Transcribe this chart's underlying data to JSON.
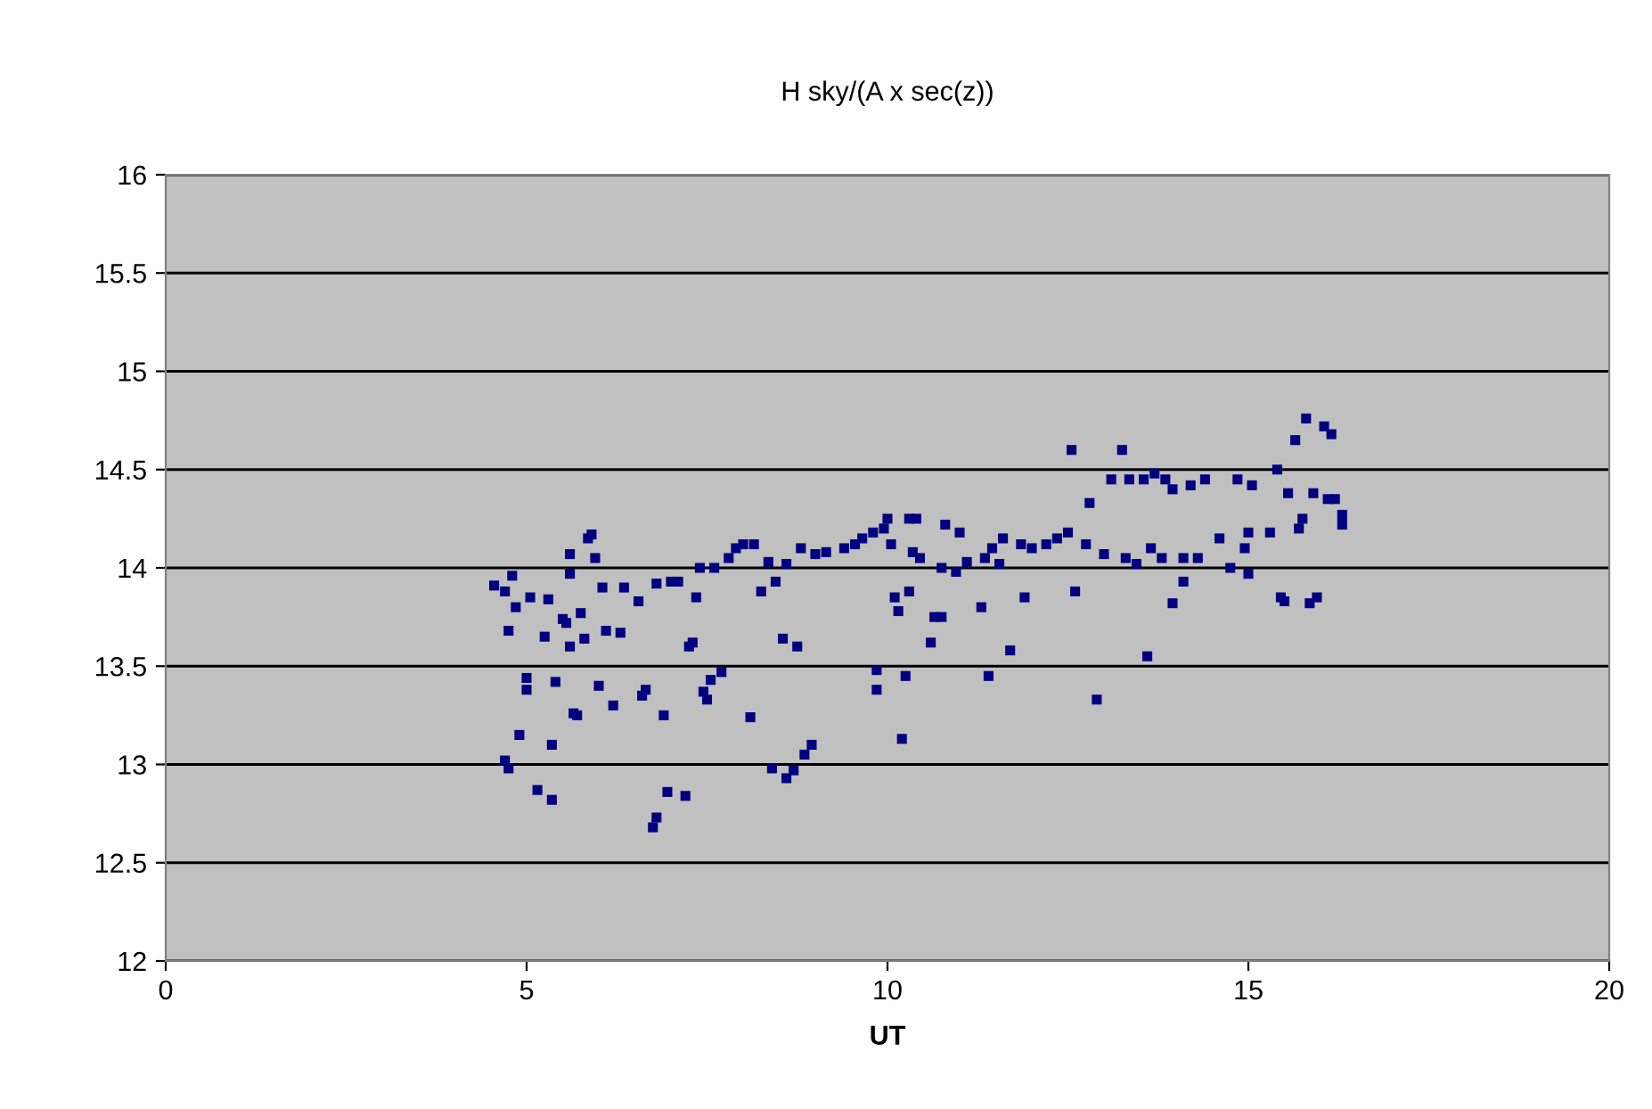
{
  "chart_data": {
    "type": "scatter",
    "title": "H sky/(A x sec(z))",
    "xlabel": "UT",
    "xlim": [
      0,
      20
    ],
    "xticks": [
      0,
      5,
      10,
      15,
      20
    ],
    "ylim": [
      12,
      16
    ],
    "yticks": [
      12,
      12.5,
      13,
      13.5,
      14,
      14.5,
      15,
      15.5,
      16
    ],
    "grid": "y",
    "marker": "square",
    "series": [
      {
        "color": "#000080",
        "x": [
          4.55,
          4.7,
          4.75,
          4.8,
          4.85,
          4.7,
          4.75,
          4.9,
          5.0,
          5.0,
          5.05,
          5.15,
          5.25,
          5.3,
          5.35,
          5.35,
          5.4,
          5.5,
          5.55,
          5.6,
          5.6,
          5.6,
          5.65,
          5.7,
          5.75,
          5.8,
          5.85,
          5.9,
          5.95,
          6.0,
          6.05,
          6.1,
          6.2,
          6.3,
          6.35,
          6.55,
          6.6,
          6.65,
          6.75,
          6.8,
          6.8,
          6.9,
          6.95,
          7.0,
          7.1,
          7.2,
          7.25,
          7.3,
          7.35,
          7.4,
          7.45,
          7.5,
          7.55,
          7.6,
          7.7,
          7.8,
          7.9,
          8.0,
          8.1,
          8.15,
          8.25,
          8.35,
          8.4,
          8.45,
          8.55,
          8.6,
          8.6,
          8.7,
          8.75,
          8.8,
          8.85,
          8.95,
          9.0,
          9.15,
          9.4,
          9.55,
          9.65,
          9.8,
          9.85,
          9.85,
          9.95,
          10.0,
          10.05,
          10.1,
          10.15,
          10.2,
          10.25,
          10.3,
          10.3,
          10.35,
          10.4,
          10.45,
          10.6,
          10.65,
          10.75,
          10.75,
          10.8,
          10.95,
          11.0,
          11.1,
          11.3,
          11.35,
          11.4,
          11.45,
          11.55,
          11.6,
          11.7,
          11.85,
          11.9,
          12.0,
          12.2,
          12.35,
          12.5,
          12.55,
          12.6,
          12.75,
          12.8,
          12.9,
          13.0,
          13.1,
          13.25,
          13.3,
          13.35,
          13.45,
          13.55,
          13.6,
          13.65,
          13.7,
          13.8,
          13.85,
          13.95,
          13.95,
          14.1,
          14.1,
          14.2,
          14.3,
          14.4,
          14.6,
          14.75,
          14.85,
          14.95,
          15.0,
          15.0,
          15.05,
          15.3,
          15.4,
          15.45,
          15.5,
          15.55,
          15.65,
          15.7,
          15.75,
          15.8,
          15.85,
          15.9,
          15.95,
          16.05,
          16.1,
          16.15,
          16.2,
          16.3,
          16.3
        ],
        "values": [
          13.91,
          13.88,
          13.68,
          13.96,
          13.8,
          13.02,
          12.98,
          13.15,
          13.44,
          13.38,
          13.85,
          12.87,
          13.65,
          13.84,
          12.82,
          13.1,
          13.42,
          13.74,
          13.72,
          13.97,
          14.07,
          13.6,
          13.26,
          13.25,
          13.77,
          13.64,
          14.15,
          14.17,
          14.05,
          13.4,
          13.9,
          13.68,
          13.3,
          13.67,
          13.9,
          13.83,
          13.35,
          13.38,
          12.68,
          12.73,
          13.92,
          13.25,
          12.86,
          13.93,
          13.93,
          12.84,
          13.6,
          13.62,
          13.85,
          14.0,
          13.37,
          13.33,
          13.43,
          14.0,
          13.47,
          14.05,
          14.1,
          14.12,
          13.24,
          14.12,
          13.88,
          14.03,
          12.98,
          13.93,
          13.64,
          14.02,
          12.93,
          12.97,
          13.6,
          14.1,
          13.05,
          13.1,
          14.07,
          14.08,
          14.1,
          14.12,
          14.15,
          14.18,
          13.48,
          13.38,
          14.2,
          14.25,
          14.12,
          13.85,
          13.78,
          13.13,
          13.45,
          14.25,
          13.88,
          14.08,
          14.25,
          14.05,
          13.62,
          13.75,
          14.0,
          13.75,
          14.22,
          13.98,
          14.18,
          14.03,
          13.8,
          14.05,
          13.45,
          14.1,
          14.02,
          14.15,
          13.58,
          14.12,
          13.85,
          14.1,
          14.12,
          14.15,
          14.18,
          14.6,
          13.88,
          14.12,
          14.33,
          13.33,
          14.07,
          14.45,
          14.6,
          14.05,
          14.45,
          14.02,
          14.45,
          13.55,
          14.1,
          14.48,
          14.05,
          14.45,
          14.4,
          13.82,
          14.05,
          13.93,
          14.42,
          14.05,
          14.45,
          14.15,
          14.0,
          14.45,
          14.1,
          14.18,
          13.97,
          14.42,
          14.18,
          14.5,
          13.85,
          13.83,
          14.38,
          14.65,
          14.2,
          14.25,
          14.76,
          13.82,
          14.38,
          13.85,
          14.72,
          14.35,
          14.68,
          14.35,
          14.22,
          14.27
        ]
      }
    ]
  }
}
